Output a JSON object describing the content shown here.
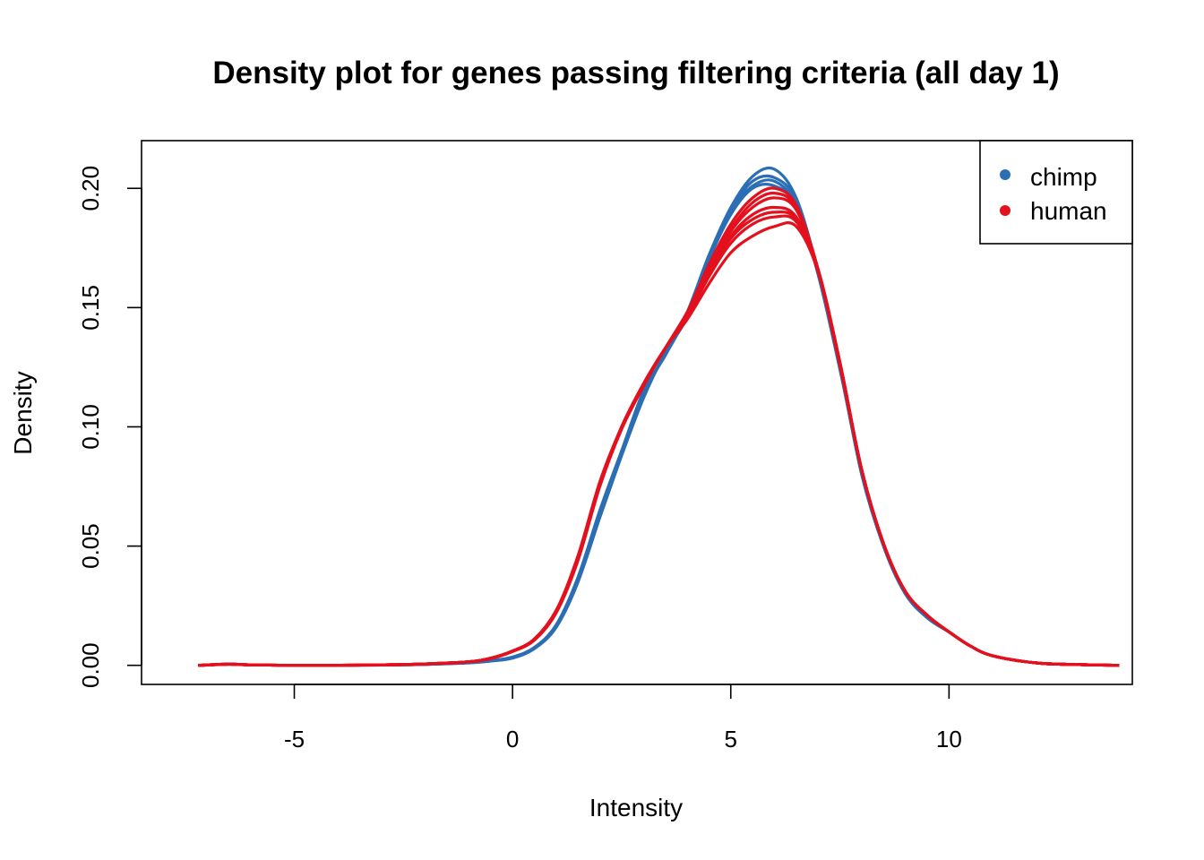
{
  "chart_data": {
    "type": "line",
    "title": "Density plot for genes passing filtering criteria (all day 1)",
    "xlabel": "Intensity",
    "ylabel": "Density",
    "xlim": [
      -8.5,
      14.2
    ],
    "ylim": [
      -0.008,
      0.22
    ],
    "x_ticks": [
      -5,
      0,
      5,
      10
    ],
    "x_tick_labels": [
      "-5",
      "0",
      "5",
      "10"
    ],
    "y_ticks": [
      0.0,
      0.05,
      0.1,
      0.15,
      0.2
    ],
    "y_tick_labels": [
      "0.00",
      "0.05",
      "0.10",
      "0.15",
      "0.20"
    ],
    "grid": false,
    "legend_position": "top-right",
    "x": [
      -7.2,
      -6.5,
      -6.0,
      -5.0,
      -4.0,
      -3.0,
      -2.0,
      -1.0,
      -0.5,
      0.0,
      0.5,
      1.0,
      1.5,
      2.0,
      2.5,
      3.0,
      3.5,
      4.0,
      4.5,
      5.0,
      5.5,
      6.0,
      6.5,
      7.0,
      7.5,
      8.0,
      8.5,
      9.0,
      9.5,
      10.0,
      10.5,
      11.0,
      12.0,
      13.0,
      13.9
    ],
    "series": [
      {
        "name": "chimp",
        "color": "#2b6eb3",
        "curves": [
          [
            0.0,
            0.0005,
            0.0002,
            0.0,
            0.0,
            0.0001,
            0.0004,
            0.0012,
            0.002,
            0.0035,
            0.0075,
            0.017,
            0.037,
            0.065,
            0.09,
            0.115,
            0.13,
            0.148,
            0.172,
            0.192,
            0.205,
            0.208,
            0.196,
            0.165,
            0.125,
            0.08,
            0.05,
            0.03,
            0.02,
            0.014,
            0.008,
            0.004,
            0.001,
            0.0003,
            0.0
          ],
          [
            0.0,
            0.0004,
            0.0002,
            0.0,
            0.0,
            0.0001,
            0.0004,
            0.001,
            0.0018,
            0.003,
            0.007,
            0.016,
            0.035,
            0.062,
            0.088,
            0.113,
            0.131,
            0.146,
            0.17,
            0.19,
            0.201,
            0.203,
            0.193,
            0.164,
            0.124,
            0.081,
            0.05,
            0.03,
            0.02,
            0.014,
            0.008,
            0.004,
            0.001,
            0.0003,
            0.0
          ],
          [
            0.0,
            0.0005,
            0.0002,
            0.0,
            0.0,
            0.0001,
            0.0004,
            0.0012,
            0.0019,
            0.0033,
            0.0072,
            0.0165,
            0.036,
            0.064,
            0.089,
            0.114,
            0.13,
            0.147,
            0.171,
            0.191,
            0.203,
            0.2045,
            0.195,
            0.165,
            0.125,
            0.08,
            0.05,
            0.03,
            0.02,
            0.014,
            0.008,
            0.004,
            0.001,
            0.0003,
            0.0
          ],
          [
            0.0,
            0.0004,
            0.0002,
            0.0,
            0.0,
            0.0001,
            0.0004,
            0.0011,
            0.0018,
            0.0032,
            0.007,
            0.016,
            0.035,
            0.063,
            0.088,
            0.112,
            0.131,
            0.146,
            0.17,
            0.189,
            0.2,
            0.201,
            0.193,
            0.164,
            0.125,
            0.081,
            0.05,
            0.03,
            0.02,
            0.014,
            0.008,
            0.004,
            0.001,
            0.0003,
            0.0
          ]
        ]
      },
      {
        "name": "human",
        "color": "#e3101d",
        "curves": [
          [
            0.0,
            0.0005,
            0.0002,
            0.0,
            0.0,
            0.0002,
            0.0006,
            0.0015,
            0.003,
            0.006,
            0.011,
            0.023,
            0.045,
            0.076,
            0.1,
            0.118,
            0.133,
            0.148,
            0.168,
            0.185,
            0.196,
            0.2,
            0.193,
            0.166,
            0.126,
            0.082,
            0.051,
            0.031,
            0.021,
            0.014,
            0.008,
            0.004,
            0.001,
            0.0003,
            0.0
          ],
          [
            0.0,
            0.0005,
            0.0002,
            0.0,
            0.0,
            0.0002,
            0.0006,
            0.0015,
            0.0028,
            0.0058,
            0.0105,
            0.022,
            0.044,
            0.075,
            0.099,
            0.117,
            0.133,
            0.148,
            0.166,
            0.182,
            0.192,
            0.196,
            0.191,
            0.166,
            0.126,
            0.082,
            0.051,
            0.031,
            0.021,
            0.014,
            0.008,
            0.004,
            0.001,
            0.0003,
            0.0
          ],
          [
            0.0,
            0.0005,
            0.0002,
            0.0,
            0.0,
            0.0002,
            0.0006,
            0.0015,
            0.003,
            0.006,
            0.011,
            0.023,
            0.046,
            0.077,
            0.1,
            0.118,
            0.133,
            0.147,
            0.165,
            0.18,
            0.189,
            0.192,
            0.188,
            0.166,
            0.127,
            0.082,
            0.051,
            0.031,
            0.021,
            0.014,
            0.008,
            0.004,
            0.001,
            0.0003,
            0.0
          ],
          [
            0.0,
            0.0005,
            0.0002,
            0.0,
            0.0,
            0.0002,
            0.0006,
            0.0015,
            0.0029,
            0.0059,
            0.0108,
            0.0225,
            0.045,
            0.076,
            0.1,
            0.118,
            0.133,
            0.146,
            0.163,
            0.177,
            0.185,
            0.188,
            0.186,
            0.166,
            0.127,
            0.082,
            0.051,
            0.031,
            0.021,
            0.014,
            0.008,
            0.004,
            0.001,
            0.0003,
            0.0
          ],
          [
            0.0,
            0.0005,
            0.0002,
            0.0,
            0.0,
            0.0002,
            0.0006,
            0.0015,
            0.003,
            0.006,
            0.011,
            0.023,
            0.045,
            0.076,
            0.1,
            0.118,
            0.133,
            0.146,
            0.164,
            0.179,
            0.187,
            0.19,
            0.187,
            0.166,
            0.127,
            0.082,
            0.051,
            0.031,
            0.021,
            0.014,
            0.008,
            0.004,
            0.001,
            0.0003,
            0.0
          ],
          [
            0.0,
            0.0005,
            0.0002,
            0.0,
            0.0,
            0.0002,
            0.0006,
            0.0015,
            0.003,
            0.006,
            0.011,
            0.023,
            0.045,
            0.076,
            0.1,
            0.118,
            0.133,
            0.145,
            0.16,
            0.173,
            0.18,
            0.184,
            0.184,
            0.165,
            0.127,
            0.082,
            0.051,
            0.031,
            0.021,
            0.014,
            0.008,
            0.004,
            0.001,
            0.0003,
            0.0
          ],
          [
            0.0,
            0.0005,
            0.0002,
            0.0,
            0.0,
            0.0002,
            0.0006,
            0.0015,
            0.003,
            0.006,
            0.011,
            0.023,
            0.045,
            0.076,
            0.1,
            0.118,
            0.133,
            0.147,
            0.167,
            0.183,
            0.194,
            0.198,
            0.192,
            0.166,
            0.126,
            0.082,
            0.051,
            0.031,
            0.021,
            0.014,
            0.008,
            0.004,
            0.001,
            0.0003,
            0.0
          ]
        ]
      }
    ]
  }
}
